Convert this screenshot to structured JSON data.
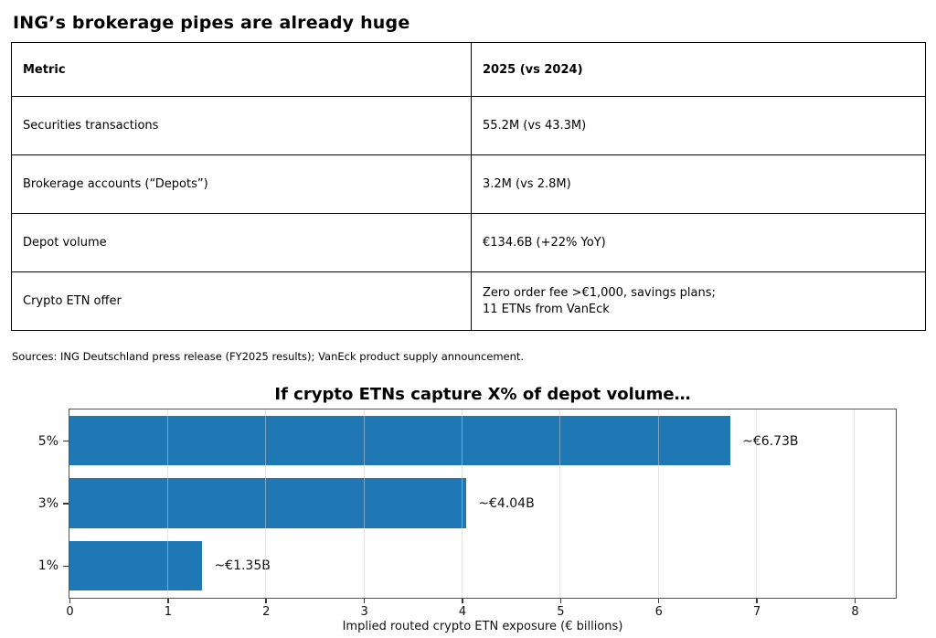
{
  "page_title": "ING’s brokerage pipes are already huge",
  "table": {
    "headers": [
      "Metric",
      "2025 (vs 2024)"
    ],
    "rows": [
      {
        "metric": "Securities transactions",
        "value": "55.2M (vs 43.3M)"
      },
      {
        "metric": "Brokerage accounts (“Depots”)",
        "value": "3.2M (vs 2.8M)"
      },
      {
        "metric": "Depot volume",
        "value": "€134.6B (+22% YoY)"
      },
      {
        "metric": "Crypto ETN offer",
        "value": "Zero order fee >€1,000, savings plans;",
        "value2": "11 ETNs from VanEck"
      }
    ]
  },
  "sources_note": "Sources: ING Deutschland press release (FY2025 results); VanEck product supply announcement.",
  "chart_data": {
    "type": "bar",
    "orientation": "horizontal",
    "title": "If crypto ETNs capture X% of depot volume…",
    "categories": [
      "5%",
      "3%",
      "1%"
    ],
    "values": [
      6.73,
      4.04,
      1.35
    ],
    "bar_labels": [
      "~€6.73B",
      "~€4.04B",
      "~€1.35B"
    ],
    "xlabel": "Implied routed crypto ETN exposure (€ billions)",
    "xticks": [
      0,
      1,
      2,
      3,
      4,
      5,
      6,
      7,
      8
    ],
    "xlim": [
      0,
      8.41
    ],
    "bar_color": "#1f77b4",
    "grid": true,
    "legend": "none"
  }
}
